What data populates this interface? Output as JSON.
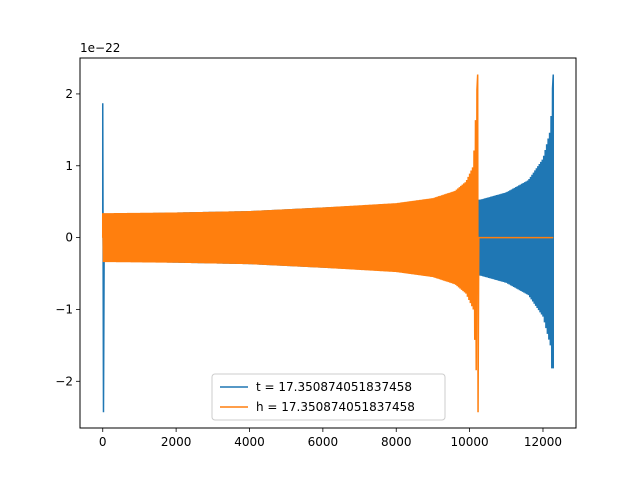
{
  "chart_data": {
    "type": "line",
    "title": "",
    "xlabel": "",
    "ylabel": "",
    "y_offset_text": "1e−22",
    "xlim": [
      -620,
      12900
    ],
    "ylim": [
      -2.65,
      2.5
    ],
    "x_ticks": [
      0,
      2000,
      4000,
      6000,
      8000,
      10000,
      12000
    ],
    "x_tick_labels": [
      "0",
      "2000",
      "4000",
      "6000",
      "8000",
      "10000",
      "12000"
    ],
    "y_ticks": [
      -2,
      -1,
      0,
      1,
      2
    ],
    "y_tick_labels": [
      "−2",
      "−1",
      "0",
      "1",
      "2"
    ],
    "grid": false,
    "legend_position": "lower-center",
    "series": [
      {
        "name": "t = 17.350874051837458",
        "color": "#1f77b4",
        "x_start": 0,
        "x_end": 12280,
        "initial_spike": {
          "x": 0,
          "max": 1.87,
          "min": -2.43
        },
        "amplitude_points": [
          {
            "x": 100,
            "amp": 0.33
          },
          {
            "x": 2000,
            "amp": 0.35
          },
          {
            "x": 4000,
            "amp": 0.37
          },
          {
            "x": 6000,
            "amp": 0.42
          },
          {
            "x": 8000,
            "amp": 0.47
          },
          {
            "x": 10000,
            "amp": 0.52
          },
          {
            "x": 10300,
            "amp": 0.53
          },
          {
            "x": 11000,
            "amp": 0.63
          },
          {
            "x": 11600,
            "amp": 0.8
          },
          {
            "x": 12000,
            "amp": 1.1
          },
          {
            "x": 12200,
            "amp": 1.5
          },
          {
            "x": 12280,
            "amp": 2.27
          }
        ],
        "final_min": -1.82
      },
      {
        "name": "h = 17.350874051837458",
        "color": "#ff7f0e",
        "x_start": 0,
        "x_end": 12280,
        "amplitude_points": [
          {
            "x": 0,
            "amp": 0.34
          },
          {
            "x": 2000,
            "amp": 0.35
          },
          {
            "x": 4000,
            "amp": 0.37
          },
          {
            "x": 6000,
            "amp": 0.42
          },
          {
            "x": 8000,
            "amp": 0.48
          },
          {
            "x": 9000,
            "amp": 0.55
          },
          {
            "x": 9600,
            "amp": 0.65
          },
          {
            "x": 9900,
            "amp": 0.78
          },
          {
            "x": 10100,
            "amp": 1.0
          },
          {
            "x": 10220,
            "amp": 2.27
          }
        ],
        "peak": {
          "x": 10220,
          "max": 2.27,
          "min": -2.43
        },
        "flat_after": {
          "x_from": 10250,
          "x_to": 12280,
          "value": 0
        }
      }
    ]
  }
}
